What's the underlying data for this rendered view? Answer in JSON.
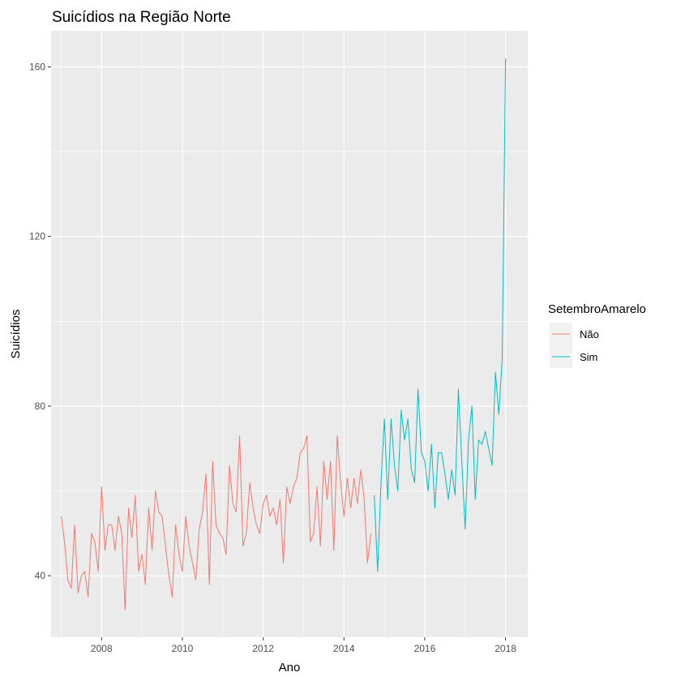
{
  "chart_data": {
    "type": "line",
    "title": "Suicídios na Região Norte",
    "xlabel": "Ano",
    "ylabel": "Suicídios",
    "xlim": [
      2006.75,
      2018.55
    ],
    "ylim": [
      25.5,
      168.5
    ],
    "x_ticks": [
      2008,
      2010,
      2012,
      2014,
      2016,
      2018
    ],
    "x_tick_labels": [
      "2008",
      "2010",
      "2012",
      "2014",
      "2016",
      "2018"
    ],
    "y_ticks": [
      40,
      80,
      120,
      160
    ],
    "y_tick_labels": [
      "40",
      "80",
      "120",
      "160"
    ],
    "grid": true,
    "legend": {
      "title": "SetembroAmarelo",
      "position": "right"
    },
    "series": [
      {
        "name": "Não",
        "color": "#F8766D",
        "x": [
          2007.0,
          2007.083,
          2007.167,
          2007.25,
          2007.333,
          2007.417,
          2007.5,
          2007.583,
          2007.667,
          2007.75,
          2007.833,
          2007.917,
          2008.0,
          2008.083,
          2008.167,
          2008.25,
          2008.333,
          2008.417,
          2008.5,
          2008.583,
          2008.667,
          2008.75,
          2008.833,
          2008.917,
          2009.0,
          2009.083,
          2009.167,
          2009.25,
          2009.333,
          2009.417,
          2009.5,
          2009.583,
          2009.667,
          2009.75,
          2009.833,
          2009.917,
          2010.0,
          2010.083,
          2010.167,
          2010.25,
          2010.333,
          2010.417,
          2010.5,
          2010.583,
          2010.667,
          2010.75,
          2010.833,
          2010.917,
          2011.0,
          2011.083,
          2011.167,
          2011.25,
          2011.333,
          2011.417,
          2011.5,
          2011.583,
          2011.667,
          2011.75,
          2011.833,
          2011.917,
          2012.0,
          2012.083,
          2012.167,
          2012.25,
          2012.333,
          2012.417,
          2012.5,
          2012.583,
          2012.667,
          2012.75,
          2012.833,
          2012.917,
          2013.0,
          2013.083,
          2013.167,
          2013.25,
          2013.333,
          2013.417,
          2013.5,
          2013.583,
          2013.667,
          2013.75,
          2013.833,
          2013.917,
          2014.0,
          2014.083,
          2014.167,
          2014.25,
          2014.333,
          2014.417,
          2014.5,
          2014.583,
          2014.667
        ],
        "y": [
          54,
          48,
          39,
          37,
          52,
          36,
          40,
          41,
          35,
          50,
          48,
          41,
          61,
          46,
          52,
          52,
          46,
          54,
          50,
          32,
          56,
          49,
          59,
          41,
          45,
          38,
          56,
          46,
          60,
          55,
          54,
          47,
          40,
          35,
          52,
          45,
          41,
          54,
          47,
          43,
          39,
          51,
          55,
          64,
          38,
          67,
          52,
          50,
          49,
          45,
          66,
          57,
          55,
          73,
          47,
          50,
          62,
          56,
          52,
          50,
          57,
          59,
          54,
          56,
          52,
          58,
          43,
          61,
          57,
          61,
          63,
          69,
          70,
          73,
          48,
          50,
          61,
          47,
          67,
          58,
          67,
          46,
          73,
          62,
          54,
          63,
          56,
          63,
          57,
          65,
          58,
          43,
          50
        ]
      },
      {
        "name": "Sim",
        "color": "#00BFC4",
        "x": [
          2014.75,
          2014.833,
          2014.917,
          2015.0,
          2015.083,
          2015.167,
          2015.25,
          2015.333,
          2015.417,
          2015.5,
          2015.583,
          2015.667,
          2015.75,
          2015.833,
          2015.917,
          2016.0,
          2016.083,
          2016.167,
          2016.25,
          2016.333,
          2016.417,
          2016.5,
          2016.583,
          2016.667,
          2016.75,
          2016.833,
          2016.917,
          2017.0,
          2017.083,
          2017.167,
          2017.25,
          2017.333,
          2017.417,
          2017.5,
          2017.583,
          2017.667,
          2017.75,
          2017.833,
          2017.917,
          2018.0
        ],
        "y": [
          59,
          41,
          62,
          77,
          58,
          77,
          66,
          60,
          79,
          72,
          77,
          65,
          62,
          84,
          69,
          67,
          60,
          71,
          56,
          69,
          69,
          64,
          58,
          65,
          59,
          84,
          67,
          51,
          72,
          80,
          58,
          72,
          71,
          74,
          70,
          66,
          88,
          78,
          91,
          162
        ]
      }
    ]
  }
}
